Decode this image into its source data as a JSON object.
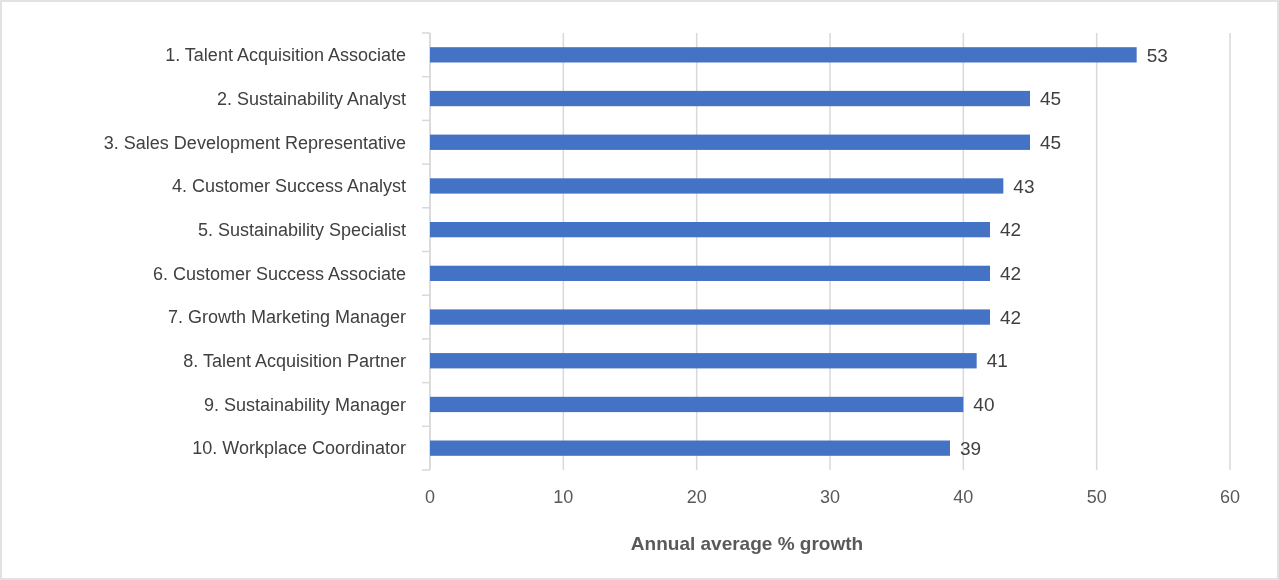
{
  "chart_data": {
    "type": "bar",
    "orientation": "horizontal",
    "xlabel": "Annual average % growth",
    "categories": [
      "1. Talent Acquisition Associate",
      "2. Sustainability Analyst",
      "3. Sales Development Representative",
      "4. Customer Success Analyst",
      "5. Sustainability Specialist",
      "6. Customer Success Associate",
      "7. Growth Marketing Manager",
      "8. Talent Acquisition Partner",
      "9. Sustainability Manager",
      "10. Workplace Coordinator"
    ],
    "values": [
      53,
      45,
      45,
      43,
      42,
      42,
      42,
      41,
      40,
      39
    ],
    "color": "#4472c4",
    "xlim": [
      0,
      60
    ],
    "xticks": [
      0,
      10,
      20,
      30,
      40,
      50,
      60
    ],
    "grid": "x",
    "data_labels": true
  }
}
